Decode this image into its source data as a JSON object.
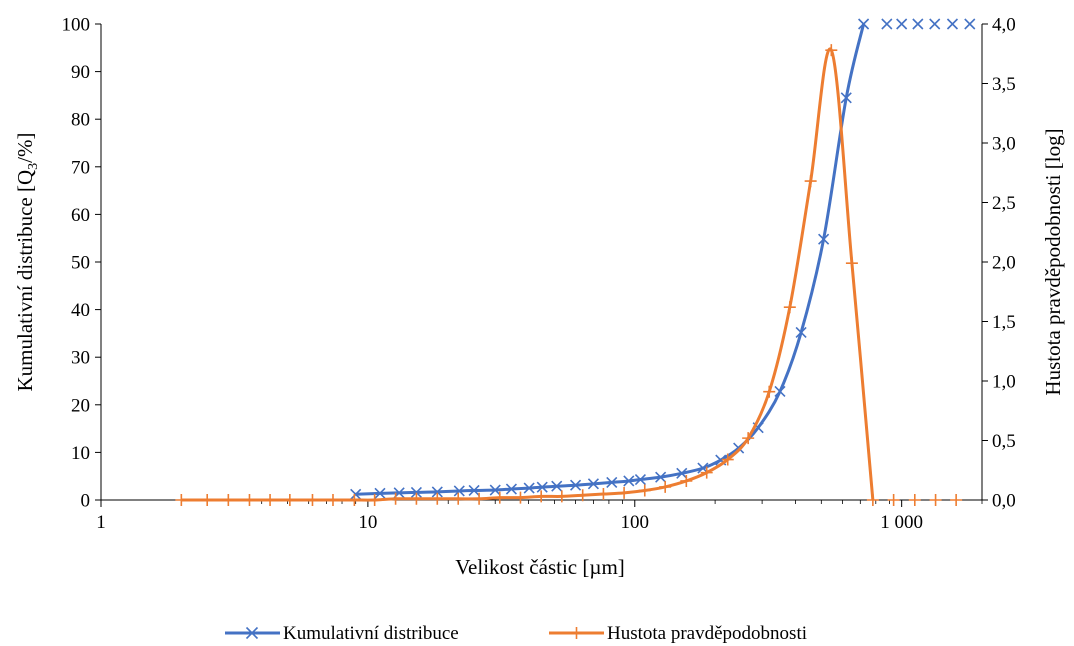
{
  "chart_data": {
    "type": "scatter",
    "xlabel": "Velikost částic [µm]",
    "ylabel_main": "Kumulativní distribuce [Q",
    "ylabel_sub": "3",
    "ylabel_tail": "/%]",
    "y2label": "Hustota pravděpodobnosti [log]",
    "x_scale": "log",
    "xlim": [
      1,
      2000
    ],
    "ylim": [
      0,
      100
    ],
    "y2lim": [
      0,
      4
    ],
    "x_ticks": [
      {
        "value": 1,
        "label": "1"
      },
      {
        "value": 10,
        "label": "10"
      },
      {
        "value": 100,
        "label": "100"
      },
      {
        "value": 1000,
        "label": "1 000"
      }
    ],
    "y_ticks": [
      {
        "value": 0,
        "label": "0"
      },
      {
        "value": 10,
        "label": "10"
      },
      {
        "value": 20,
        "label": "20"
      },
      {
        "value": 30,
        "label": "30"
      },
      {
        "value": 40,
        "label": "40"
      },
      {
        "value": 50,
        "label": "50"
      },
      {
        "value": 60,
        "label": "60"
      },
      {
        "value": 70,
        "label": "70"
      },
      {
        "value": 80,
        "label": "80"
      },
      {
        "value": 90,
        "label": "90"
      },
      {
        "value": 100,
        "label": "100"
      }
    ],
    "y2_ticks": [
      {
        "value": 0,
        "label": "0,0"
      },
      {
        "value": 0.5,
        "label": "0,5"
      },
      {
        "value": 1,
        "label": "1,0"
      },
      {
        "value": 1.5,
        "label": "1,5"
      },
      {
        "value": 2,
        "label": "2,0"
      },
      {
        "value": 2.5,
        "label": "2,5"
      },
      {
        "value": 3,
        "label": "3,0"
      },
      {
        "value": 3.5,
        "label": "3,5"
      },
      {
        "value": 4,
        "label": "4,0"
      }
    ],
    "legend_position": "bottom",
    "series": [
      {
        "name": "Kumulativní distribuce",
        "axis": "left",
        "marker": "x",
        "color": "#4472C4",
        "x": [
          9.0,
          11.1,
          13.1,
          15.2,
          18.2,
          22.0,
          25.0,
          30.0,
          34.5,
          40.2,
          45.0,
          51.0,
          60.0,
          70.0,
          82.0,
          95.0,
          105.0,
          125.0,
          150.0,
          180.0,
          210.0,
          245.0,
          290.0,
          350.0,
          420.0,
          510.0,
          620.0,
          720.0,
          880.0,
          1000.0,
          1150.0,
          1330.0,
          1550.0,
          1800.0
        ],
        "y": [
          1.2,
          1.4,
          1.5,
          1.6,
          1.7,
          1.9,
          2.0,
          2.1,
          2.3,
          2.5,
          2.7,
          2.9,
          3.1,
          3.4,
          3.7,
          4.0,
          4.3,
          4.8,
          5.6,
          6.7,
          8.4,
          10.9,
          15.2,
          22.8,
          35.2,
          54.8,
          84.5,
          100,
          100,
          100,
          100,
          100,
          100,
          100
        ]
      },
      {
        "name": "Hustota pravděpodobnosti",
        "axis": "right",
        "marker": "+",
        "color": "#ED7D31",
        "x": [
          2.0,
          2.5,
          3.0,
          3.6,
          4.3,
          5.1,
          6.2,
          7.4,
          8.9,
          10.6,
          12.7,
          15.2,
          18.2,
          21.8,
          26.1,
          31.2,
          37.3,
          44.6,
          53.3,
          63.8,
          76.3,
          91.2,
          109.0,
          130.0,
          156.0,
          186.0,
          223.0,
          266.0,
          319.0,
          381.0,
          456.0,
          545.0,
          651.0,
          780.0,
          933.0,
          1120.0,
          1340.0,
          1600.0
        ],
        "y": [
          0.0,
          0.0,
          0.0,
          0.0,
          0.0,
          0.0,
          0.0,
          0.0,
          0.0,
          0.0,
          0.01,
          0.01,
          0.01,
          0.01,
          0.01,
          0.02,
          0.02,
          0.03,
          0.03,
          0.04,
          0.05,
          0.06,
          0.08,
          0.11,
          0.16,
          0.23,
          0.34,
          0.52,
          0.91,
          1.62,
          2.68,
          3.78,
          1.99,
          0.0,
          0.0,
          0.0,
          0.0,
          0.0
        ]
      }
    ]
  }
}
